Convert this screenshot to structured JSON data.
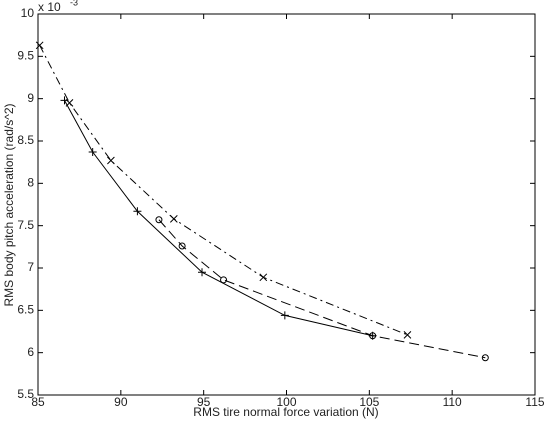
{
  "chart_data": {
    "type": "line",
    "x_label": "RMS tire normal force variation  (N)",
    "y_label": "RMS body pitch acceleration  (rad/s^2)",
    "y_scale_label": {
      "base": "x 10",
      "exponent": "-3"
    },
    "xlim": [
      85,
      115
    ],
    "xticks": [
      85,
      90,
      95,
      100,
      105,
      110,
      115
    ],
    "ylim": [
      5.5,
      10
    ],
    "yticks": [
      5.5,
      6,
      6.5,
      7,
      7.5,
      8,
      8.5,
      9,
      9.5,
      10
    ],
    "grid": false,
    "series": [
      {
        "color": "#000000",
        "linestyle": "solid",
        "marker": "plus",
        "x": [
          86.6,
          88.3,
          91.0,
          94.9,
          99.9,
          105.2
        ],
        "values": [
          8.98,
          8.37,
          7.67,
          6.95,
          6.44,
          6.2
        ]
      },
      {
        "color": "#000000",
        "linestyle": "dashed",
        "marker": "circle",
        "x": [
          92.3,
          93.7,
          96.2,
          105.2,
          112.0
        ],
        "values": [
          7.57,
          7.26,
          6.86,
          6.2,
          5.94
        ]
      },
      {
        "color": "#000000",
        "linestyle": "dashdot",
        "marker": "x",
        "x": [
          85.1,
          86.9,
          89.4,
          93.2,
          98.6,
          107.3
        ],
        "values": [
          9.63,
          8.95,
          8.27,
          7.58,
          6.89,
          6.21
        ]
      }
    ]
  }
}
